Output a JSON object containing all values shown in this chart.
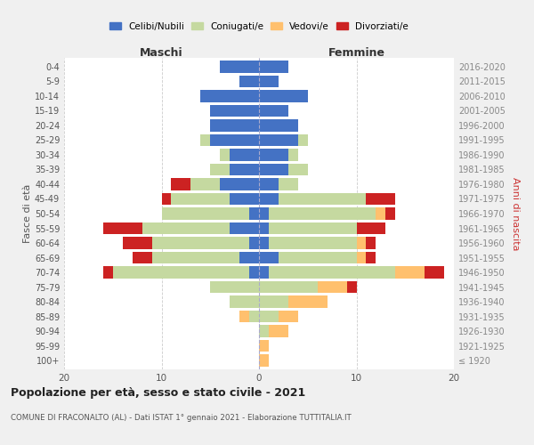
{
  "age_groups": [
    "100+",
    "95-99",
    "90-94",
    "85-89",
    "80-84",
    "75-79",
    "70-74",
    "65-69",
    "60-64",
    "55-59",
    "50-54",
    "45-49",
    "40-44",
    "35-39",
    "30-34",
    "25-29",
    "20-24",
    "15-19",
    "10-14",
    "5-9",
    "0-4"
  ],
  "birth_years": [
    "≤ 1920",
    "1921-1925",
    "1926-1930",
    "1931-1935",
    "1936-1940",
    "1941-1945",
    "1946-1950",
    "1951-1955",
    "1956-1960",
    "1961-1965",
    "1966-1970",
    "1971-1975",
    "1976-1980",
    "1981-1985",
    "1986-1990",
    "1991-1995",
    "1996-2000",
    "2001-2005",
    "2006-2010",
    "2011-2015",
    "2016-2020"
  ],
  "male": {
    "celibi": [
      0,
      0,
      0,
      0,
      0,
      0,
      1,
      2,
      1,
      3,
      1,
      3,
      4,
      3,
      3,
      5,
      5,
      5,
      6,
      2,
      4
    ],
    "coniugati": [
      0,
      0,
      0,
      1,
      3,
      5,
      14,
      9,
      10,
      9,
      9,
      6,
      3,
      2,
      1,
      1,
      0,
      0,
      0,
      0,
      0
    ],
    "vedovi": [
      0,
      0,
      0,
      1,
      0,
      0,
      0,
      0,
      0,
      0,
      0,
      0,
      0,
      0,
      0,
      0,
      0,
      0,
      0,
      0,
      0
    ],
    "divorziati": [
      0,
      0,
      0,
      0,
      0,
      0,
      1,
      2,
      3,
      4,
      0,
      1,
      2,
      0,
      0,
      0,
      0,
      0,
      0,
      0,
      0
    ]
  },
  "female": {
    "nubili": [
      0,
      0,
      0,
      0,
      0,
      0,
      1,
      2,
      1,
      1,
      1,
      2,
      2,
      3,
      3,
      4,
      4,
      3,
      5,
      2,
      3
    ],
    "coniugate": [
      0,
      0,
      1,
      2,
      3,
      6,
      13,
      8,
      9,
      9,
      11,
      9,
      2,
      2,
      1,
      1,
      0,
      0,
      0,
      0,
      0
    ],
    "vedove": [
      1,
      1,
      2,
      2,
      4,
      3,
      3,
      1,
      1,
      0,
      1,
      0,
      0,
      0,
      0,
      0,
      0,
      0,
      0,
      0,
      0
    ],
    "divorziate": [
      0,
      0,
      0,
      0,
      0,
      1,
      2,
      1,
      1,
      3,
      1,
      3,
      0,
      0,
      0,
      0,
      0,
      0,
      0,
      0,
      0
    ]
  },
  "colors": {
    "celibi": "#4472c4",
    "coniugati": "#c5d9a0",
    "vedovi": "#ffc06e",
    "divorziati": "#cc2222"
  },
  "xlim": 20,
  "title": "Popolazione per età, sesso e stato civile - 2021",
  "subtitle": "COMUNE DI FRACONALTO (AL) - Dati ISTAT 1° gennaio 2021 - Elaborazione TUTTITALIA.IT",
  "ylabel_left": "Fasce di età",
  "ylabel_right": "Anni di nascita",
  "xlabel_male": "Maschi",
  "xlabel_female": "Femmine",
  "bg_color": "#f0f0f0",
  "plot_bg": "#ffffff",
  "legend_labels": [
    "Celibi/Nubili",
    "Coniugati/e",
    "Vedovi/e",
    "Divorziati/e"
  ]
}
